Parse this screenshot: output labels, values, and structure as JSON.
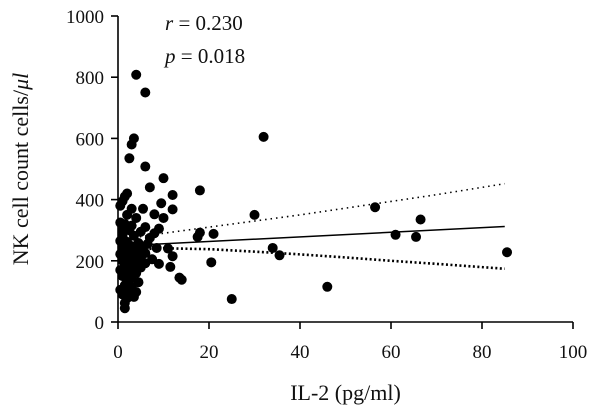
{
  "chart_data": {
    "type": "scatter",
    "title": "",
    "xlabel": "IL-2 (pg/ml)",
    "ylabel": "NK cell count cells/",
    "ylabel_unit": "μl",
    "xlim": [
      0,
      100
    ],
    "ylim": [
      0,
      1000
    ],
    "x_ticks": [
      0,
      20,
      40,
      60,
      80,
      100
    ],
    "y_ticks": [
      0,
      200,
      400,
      600,
      800,
      1000
    ],
    "grid": false,
    "annotations": {
      "r_symbol": "r",
      "r_value": " = 0.230",
      "p_symbol": "p",
      "p_value": " = 0.018"
    },
    "regression": {
      "fit": {
        "x": [
          0,
          85
        ],
        "y": [
          248,
          312
        ]
      },
      "ci_upper": {
        "x": [
          0,
          10,
          20,
          30,
          40,
          50,
          60,
          70,
          85
        ],
        "y": [
          268,
          290,
          310,
          330,
          350,
          372,
          394,
          416,
          452
        ]
      },
      "ci_lower": {
        "x": [
          0,
          10,
          20,
          30,
          40,
          50,
          60,
          70,
          85
        ],
        "y": [
          235,
          241,
          238,
          230,
          221,
          211,
          200,
          190,
          174
        ]
      }
    },
    "points": [
      {
        "x": 4,
        "y": 808
      },
      {
        "x": 6,
        "y": 750
      },
      {
        "x": 3.5,
        "y": 600
      },
      {
        "x": 3,
        "y": 580
      },
      {
        "x": 32,
        "y": 605
      },
      {
        "x": 2.5,
        "y": 535
      },
      {
        "x": 6,
        "y": 508
      },
      {
        "x": 10,
        "y": 470
      },
      {
        "x": 18,
        "y": 430
      },
      {
        "x": 7,
        "y": 440
      },
      {
        "x": 2,
        "y": 420
      },
      {
        "x": 1.5,
        "y": 410
      },
      {
        "x": 12,
        "y": 415
      },
      {
        "x": 1,
        "y": 395
      },
      {
        "x": 9.5,
        "y": 388
      },
      {
        "x": 0.5,
        "y": 380
      },
      {
        "x": 3,
        "y": 370
      },
      {
        "x": 5.5,
        "y": 370
      },
      {
        "x": 12,
        "y": 368
      },
      {
        "x": 8,
        "y": 352
      },
      {
        "x": 2,
        "y": 350
      },
      {
        "x": 30,
        "y": 350
      },
      {
        "x": 4,
        "y": 340
      },
      {
        "x": 10,
        "y": 340
      },
      {
        "x": 66.5,
        "y": 335
      },
      {
        "x": 0.5,
        "y": 325
      },
      {
        "x": 1.5,
        "y": 320
      },
      {
        "x": 3,
        "y": 315
      },
      {
        "x": 6,
        "y": 310
      },
      {
        "x": 9,
        "y": 305
      },
      {
        "x": 1,
        "y": 300
      },
      {
        "x": 2.5,
        "y": 300
      },
      {
        "x": 5,
        "y": 295
      },
      {
        "x": 8,
        "y": 290
      },
      {
        "x": 18,
        "y": 292
      },
      {
        "x": 21,
        "y": 288
      },
      {
        "x": 56.5,
        "y": 375
      },
      {
        "x": 61,
        "y": 285
      },
      {
        "x": 65.5,
        "y": 278
      },
      {
        "x": 1,
        "y": 280
      },
      {
        "x": 3.5,
        "y": 282
      },
      {
        "x": 7,
        "y": 275
      },
      {
        "x": 17.5,
        "y": 278
      },
      {
        "x": 0.5,
        "y": 265
      },
      {
        "x": 2,
        "y": 262
      },
      {
        "x": 4.5,
        "y": 258
      },
      {
        "x": 6.5,
        "y": 255
      },
      {
        "x": 1.5,
        "y": 250
      },
      {
        "x": 3,
        "y": 248
      },
      {
        "x": 5,
        "y": 245
      },
      {
        "x": 8.5,
        "y": 242
      },
      {
        "x": 34,
        "y": 242
      },
      {
        "x": 11,
        "y": 240
      },
      {
        "x": 1,
        "y": 238
      },
      {
        "x": 2.5,
        "y": 232
      },
      {
        "x": 4,
        "y": 228
      },
      {
        "x": 6,
        "y": 225
      },
      {
        "x": 85.5,
        "y": 228
      },
      {
        "x": 35.5,
        "y": 218
      },
      {
        "x": 0.5,
        "y": 222
      },
      {
        "x": 2,
        "y": 215
      },
      {
        "x": 3.5,
        "y": 212
      },
      {
        "x": 5,
        "y": 208
      },
      {
        "x": 7.5,
        "y": 205
      },
      {
        "x": 12,
        "y": 215
      },
      {
        "x": 1,
        "y": 200
      },
      {
        "x": 2.5,
        "y": 198
      },
      {
        "x": 4,
        "y": 195
      },
      {
        "x": 6,
        "y": 192
      },
      {
        "x": 9,
        "y": 190
      },
      {
        "x": 20.5,
        "y": 195
      },
      {
        "x": 1.5,
        "y": 185
      },
      {
        "x": 3,
        "y": 182
      },
      {
        "x": 5,
        "y": 178
      },
      {
        "x": 11.5,
        "y": 180
      },
      {
        "x": 0.5,
        "y": 170
      },
      {
        "x": 2,
        "y": 165
      },
      {
        "x": 4,
        "y": 160
      },
      {
        "x": 1,
        "y": 150
      },
      {
        "x": 3,
        "y": 145
      },
      {
        "x": 13.5,
        "y": 145
      },
      {
        "x": 14,
        "y": 138
      },
      {
        "x": 2,
        "y": 135
      },
      {
        "x": 4.5,
        "y": 130
      },
      {
        "x": 1.5,
        "y": 120
      },
      {
        "x": 3,
        "y": 115
      },
      {
        "x": 46,
        "y": 115
      },
      {
        "x": 0.5,
        "y": 105
      },
      {
        "x": 2.5,
        "y": 100
      },
      {
        "x": 4,
        "y": 98
      },
      {
        "x": 1,
        "y": 90
      },
      {
        "x": 3.5,
        "y": 82
      },
      {
        "x": 2,
        "y": 78
      },
      {
        "x": 25,
        "y": 75
      },
      {
        "x": 1.5,
        "y": 62
      },
      {
        "x": 1.5,
        "y": 45
      }
    ]
  }
}
